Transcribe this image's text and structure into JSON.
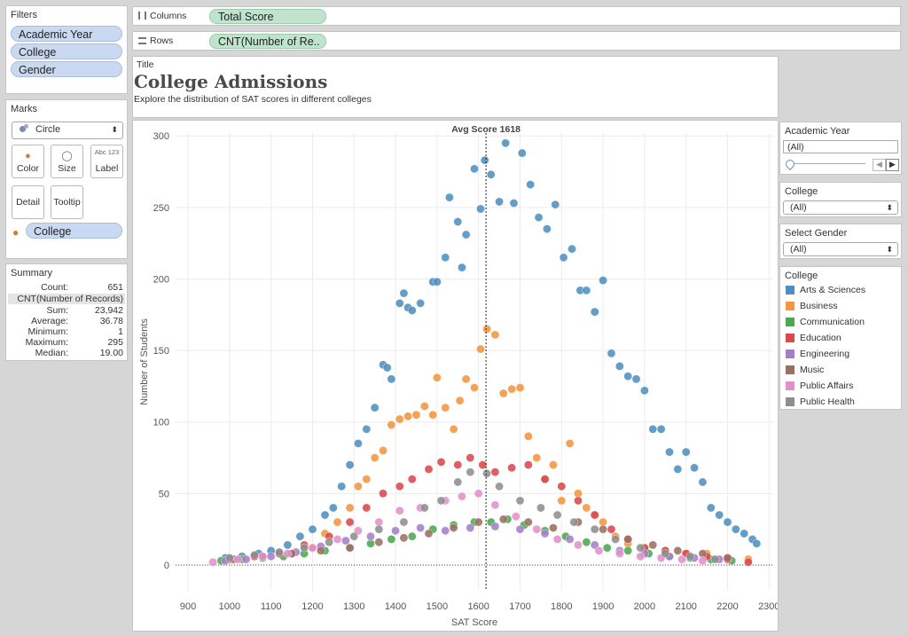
{
  "filters": {
    "title": "Filters",
    "items": [
      "Academic Year",
      "College",
      "Gender"
    ]
  },
  "marks": {
    "title": "Marks",
    "type": "Circle",
    "buttons": [
      "Color",
      "Size",
      "Label",
      "Detail",
      "Tooltip"
    ],
    "label_icon_text": "Abc 123",
    "color_field": "College"
  },
  "summary": {
    "title": "Summary",
    "count_label": "Count:",
    "count": "651",
    "measure": "CNT(Number of Records)",
    "rows": [
      {
        "k": "Sum:",
        "v": "23,942"
      },
      {
        "k": "Average:",
        "v": "36.78"
      },
      {
        "k": "Minimum:",
        "v": "1"
      },
      {
        "k": "Maximum:",
        "v": "295"
      },
      {
        "k": "Median:",
        "v": "19.00"
      }
    ]
  },
  "shelves": {
    "columns_label": "Columns",
    "columns_pill": "Total Score",
    "rows_label": "Rows",
    "rows_pill": "CNT(Number of Re.."
  },
  "title_card": {
    "label": "Title",
    "title": "College Admissions",
    "subtitle": "Explore the distribution of SAT scores in different colleges"
  },
  "right": {
    "year": {
      "title": "Academic Year",
      "value": "(All)"
    },
    "college": {
      "title": "College",
      "value": "(All)"
    },
    "gender": {
      "title": "Select Gender",
      "value": "(All)"
    },
    "legend": {
      "title": "College",
      "items": [
        {
          "name": "Arts & Sciences",
          "color": "#4e8fbf"
        },
        {
          "name": "Business",
          "color": "#f2963f"
        },
        {
          "name": "Communication",
          "color": "#4aa94e"
        },
        {
          "name": "Education",
          "color": "#d9484e"
        },
        {
          "name": "Engineering",
          "color": "#a47fc8"
        },
        {
          "name": "Music",
          "color": "#9c6f63"
        },
        {
          "name": "Public Affairs",
          "color": "#e38fc9"
        },
        {
          "name": "Public Health",
          "color": "#8e8e8e"
        }
      ]
    }
  },
  "chart_data": {
    "type": "scatter",
    "xlabel": "SAT Score",
    "ylabel": "Number of Students",
    "xlim": [
      870,
      2310
    ],
    "ylim": [
      -18,
      302
    ],
    "xticks": [
      900,
      1000,
      1100,
      1200,
      1300,
      1400,
      1500,
      1600,
      1700,
      1800,
      1900,
      2000,
      2100,
      2200,
      2300
    ],
    "yticks": [
      0,
      50,
      100,
      150,
      200,
      250,
      300
    ],
    "reference_line": {
      "x": 1618,
      "label": "Avg Score 1618"
    },
    "grid": true,
    "series": [
      {
        "name": "Arts & Sciences",
        "color": "#4e8fbf",
        "points": [
          [
            990,
            5
          ],
          [
            1030,
            6
          ],
          [
            1070,
            8
          ],
          [
            1100,
            10
          ],
          [
            1140,
            14
          ],
          [
            1170,
            20
          ],
          [
            1200,
            25
          ],
          [
            1230,
            35
          ],
          [
            1250,
            40
          ],
          [
            1270,
            55
          ],
          [
            1290,
            70
          ],
          [
            1310,
            85
          ],
          [
            1330,
            95
          ],
          [
            1350,
            110
          ],
          [
            1370,
            140
          ],
          [
            1380,
            138
          ],
          [
            1390,
            130
          ],
          [
            1410,
            183
          ],
          [
            1420,
            190
          ],
          [
            1430,
            180
          ],
          [
            1440,
            178
          ],
          [
            1460,
            183
          ],
          [
            1490,
            198
          ],
          [
            1500,
            198
          ],
          [
            1520,
            215
          ],
          [
            1530,
            257
          ],
          [
            1550,
            240
          ],
          [
            1560,
            208
          ],
          [
            1570,
            231
          ],
          [
            1590,
            277
          ],
          [
            1605,
            249
          ],
          [
            1615,
            283
          ],
          [
            1630,
            273
          ],
          [
            1650,
            254
          ],
          [
            1665,
            295
          ],
          [
            1685,
            253
          ],
          [
            1705,
            288
          ],
          [
            1725,
            266
          ],
          [
            1745,
            243
          ],
          [
            1765,
            235
          ],
          [
            1785,
            252
          ],
          [
            1805,
            215
          ],
          [
            1825,
            221
          ],
          [
            1845,
            192
          ],
          [
            1860,
            192
          ],
          [
            1880,
            177
          ],
          [
            1900,
            199
          ],
          [
            1920,
            148
          ],
          [
            1940,
            139
          ],
          [
            1960,
            132
          ],
          [
            1980,
            130
          ],
          [
            2000,
            122
          ],
          [
            2020,
            95
          ],
          [
            2040,
            95
          ],
          [
            2060,
            79
          ],
          [
            2080,
            67
          ],
          [
            2100,
            79
          ],
          [
            2120,
            68
          ],
          [
            2140,
            58
          ],
          [
            2160,
            40
          ],
          [
            2180,
            35
          ],
          [
            2200,
            30
          ],
          [
            2220,
            25
          ],
          [
            2240,
            22
          ],
          [
            2260,
            18
          ],
          [
            2270,
            15
          ]
        ]
      },
      {
        "name": "Business",
        "color": "#f2963f",
        "points": [
          [
            1150,
            8
          ],
          [
            1200,
            12
          ],
          [
            1230,
            22
          ],
          [
            1260,
            30
          ],
          [
            1290,
            40
          ],
          [
            1310,
            55
          ],
          [
            1330,
            60
          ],
          [
            1350,
            75
          ],
          [
            1370,
            80
          ],
          [
            1390,
            98
          ],
          [
            1410,
            102
          ],
          [
            1430,
            104
          ],
          [
            1450,
            105
          ],
          [
            1470,
            111
          ],
          [
            1490,
            105
          ],
          [
            1500,
            131
          ],
          [
            1520,
            110
          ],
          [
            1540,
            95
          ],
          [
            1555,
            115
          ],
          [
            1570,
            130
          ],
          [
            1590,
            124
          ],
          [
            1605,
            151
          ],
          [
            1620,
            165
          ],
          [
            1640,
            161
          ],
          [
            1660,
            120
          ],
          [
            1680,
            123
          ],
          [
            1700,
            124
          ],
          [
            1720,
            90
          ],
          [
            1740,
            75
          ],
          [
            1760,
            60
          ],
          [
            1780,
            70
          ],
          [
            1800,
            45
          ],
          [
            1820,
            85
          ],
          [
            1840,
            50
          ],
          [
            1860,
            40
          ],
          [
            1880,
            35
          ],
          [
            1900,
            30
          ],
          [
            1930,
            20
          ],
          [
            1960,
            15
          ],
          [
            2000,
            12
          ],
          [
            2050,
            10
          ],
          [
            2100,
            8
          ],
          [
            2150,
            8
          ],
          [
            2200,
            5
          ],
          [
            2250,
            4
          ]
        ]
      },
      {
        "name": "Communication",
        "color": "#4aa94e",
        "points": [
          [
            980,
            3
          ],
          [
            1030,
            4
          ],
          [
            1080,
            5
          ],
          [
            1130,
            6
          ],
          [
            1180,
            8
          ],
          [
            1230,
            10
          ],
          [
            1290,
            12
          ],
          [
            1340,
            15
          ],
          [
            1390,
            18
          ],
          [
            1440,
            20
          ],
          [
            1490,
            25
          ],
          [
            1540,
            28
          ],
          [
            1590,
            30
          ],
          [
            1630,
            30
          ],
          [
            1670,
            32
          ],
          [
            1710,
            28
          ],
          [
            1760,
            24
          ],
          [
            1810,
            20
          ],
          [
            1860,
            16
          ],
          [
            1910,
            12
          ],
          [
            1960,
            10
          ],
          [
            2010,
            8
          ],
          [
            2060,
            6
          ],
          [
            2110,
            5
          ],
          [
            2160,
            4
          ],
          [
            2210,
            3
          ]
        ]
      },
      {
        "name": "Education",
        "color": "#d9484e",
        "points": [
          [
            1000,
            4
          ],
          [
            1060,
            6
          ],
          [
            1120,
            8
          ],
          [
            1180,
            14
          ],
          [
            1240,
            20
          ],
          [
            1290,
            30
          ],
          [
            1330,
            40
          ],
          [
            1370,
            50
          ],
          [
            1410,
            55
          ],
          [
            1440,
            60
          ],
          [
            1480,
            67
          ],
          [
            1510,
            72
          ],
          [
            1550,
            70
          ],
          [
            1580,
            75
          ],
          [
            1610,
            70
          ],
          [
            1640,
            65
          ],
          [
            1680,
            68
          ],
          [
            1720,
            70
          ],
          [
            1760,
            60
          ],
          [
            1800,
            55
          ],
          [
            1840,
            45
          ],
          [
            1880,
            35
          ],
          [
            1920,
            25
          ],
          [
            1960,
            18
          ],
          [
            2000,
            12
          ],
          [
            2050,
            10
          ],
          [
            2100,
            8
          ],
          [
            2150,
            6
          ],
          [
            2200,
            4
          ],
          [
            2250,
            2
          ]
        ]
      },
      {
        "name": "Engineering",
        "color": "#a47fc8",
        "points": [
          [
            990,
            3
          ],
          [
            1040,
            4
          ],
          [
            1100,
            6
          ],
          [
            1160,
            9
          ],
          [
            1220,
            13
          ],
          [
            1280,
            17
          ],
          [
            1340,
            20
          ],
          [
            1400,
            24
          ],
          [
            1460,
            26
          ],
          [
            1520,
            24
          ],
          [
            1580,
            26
          ],
          [
            1640,
            27
          ],
          [
            1700,
            25
          ],
          [
            1760,
            22
          ],
          [
            1820,
            18
          ],
          [
            1880,
            14
          ],
          [
            1940,
            10
          ],
          [
            2000,
            8
          ],
          [
            2060,
            6
          ],
          [
            2120,
            5
          ],
          [
            2180,
            4
          ]
        ]
      },
      {
        "name": "Music",
        "color": "#9c6f63",
        "points": [
          [
            1010,
            4
          ],
          [
            1080,
            6
          ],
          [
            1150,
            8
          ],
          [
            1220,
            10
          ],
          [
            1290,
            12
          ],
          [
            1360,
            16
          ],
          [
            1420,
            19
          ],
          [
            1480,
            22
          ],
          [
            1540,
            26
          ],
          [
            1600,
            30
          ],
          [
            1660,
            32
          ],
          [
            1720,
            30
          ],
          [
            1780,
            26
          ],
          [
            1840,
            30
          ],
          [
            1900,
            25
          ],
          [
            1960,
            18
          ],
          [
            2020,
            14
          ],
          [
            2080,
            10
          ],
          [
            2140,
            8
          ],
          [
            2200,
            5
          ]
        ]
      },
      {
        "name": "Public Affairs",
        "color": "#e38fc9",
        "points": [
          [
            960,
            2
          ],
          [
            1020,
            4
          ],
          [
            1080,
            6
          ],
          [
            1140,
            8
          ],
          [
            1200,
            12
          ],
          [
            1260,
            18
          ],
          [
            1310,
            24
          ],
          [
            1360,
            30
          ],
          [
            1410,
            38
          ],
          [
            1460,
            40
          ],
          [
            1520,
            45
          ],
          [
            1560,
            48
          ],
          [
            1600,
            50
          ],
          [
            1640,
            42
          ],
          [
            1690,
            34
          ],
          [
            1740,
            25
          ],
          [
            1790,
            18
          ],
          [
            1840,
            14
          ],
          [
            1890,
            10
          ],
          [
            1940,
            8
          ],
          [
            1990,
            6
          ],
          [
            2040,
            5
          ],
          [
            2090,
            4
          ],
          [
            2140,
            3
          ]
        ]
      },
      {
        "name": "Public Health",
        "color": "#8e8e8e",
        "points": [
          [
            1000,
            5
          ],
          [
            1060,
            7
          ],
          [
            1120,
            9
          ],
          [
            1180,
            12
          ],
          [
            1240,
            16
          ],
          [
            1300,
            20
          ],
          [
            1360,
            25
          ],
          [
            1420,
            30
          ],
          [
            1470,
            40
          ],
          [
            1510,
            45
          ],
          [
            1550,
            58
          ],
          [
            1580,
            65
          ],
          [
            1620,
            64
          ],
          [
            1650,
            55
          ],
          [
            1700,
            45
          ],
          [
            1750,
            40
          ],
          [
            1790,
            35
          ],
          [
            1830,
            30
          ],
          [
            1880,
            25
          ],
          [
            1930,
            18
          ],
          [
            1990,
            12
          ],
          [
            2050,
            8
          ],
          [
            2110,
            6
          ],
          [
            2170,
            4
          ]
        ]
      }
    ]
  }
}
